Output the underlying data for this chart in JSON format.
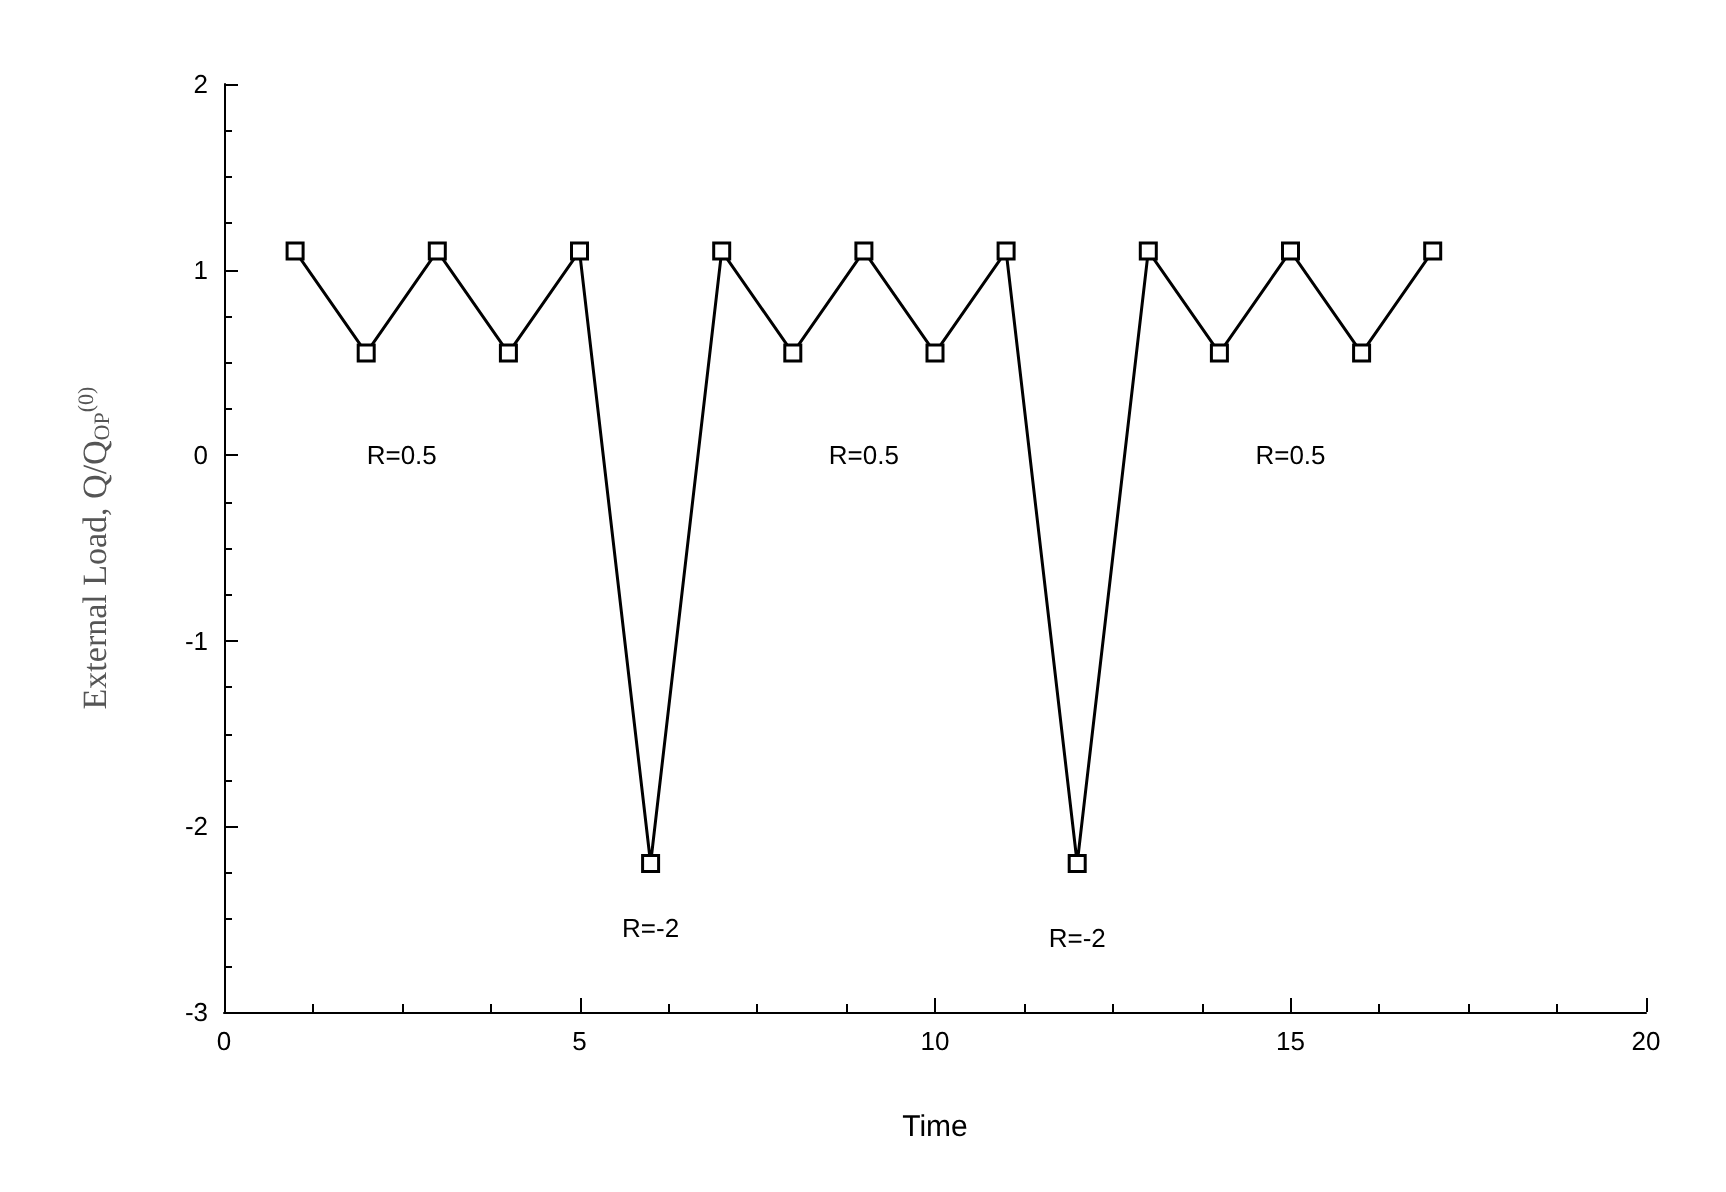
{
  "chart_data": {
    "type": "line",
    "xlabel": "Time",
    "ylabel": "External Load, Q/Q$_{OP}$$^{(0)}$",
    "x": [
      1,
      2,
      3,
      4,
      5,
      6,
      7,
      8,
      9,
      10,
      11,
      12,
      13,
      14,
      15,
      16,
      17
    ],
    "series": [
      {
        "color": "#000000",
        "values": [
          1.1,
          0.55,
          1.1,
          0.55,
          1.1,
          -2.2,
          1.1,
          0.55,
          1.1,
          0.55,
          1.1,
          -2.2,
          1.1,
          0.55,
          1.1,
          0.55,
          1.1
        ]
      }
    ],
    "xlim": [
      0,
      20
    ],
    "xticks": [
      0,
      5,
      10,
      15,
      20
    ],
    "ylim": [
      -3,
      2
    ],
    "yticks": [
      -3,
      -2,
      -1,
      0,
      1,
      2
    ],
    "grid": false,
    "marker": "square",
    "line_style": "solid",
    "annotations": [
      "R=0.5",
      "R=0.5",
      "R=0.5",
      "R=-2",
      "R=-2"
    ]
  }
}
